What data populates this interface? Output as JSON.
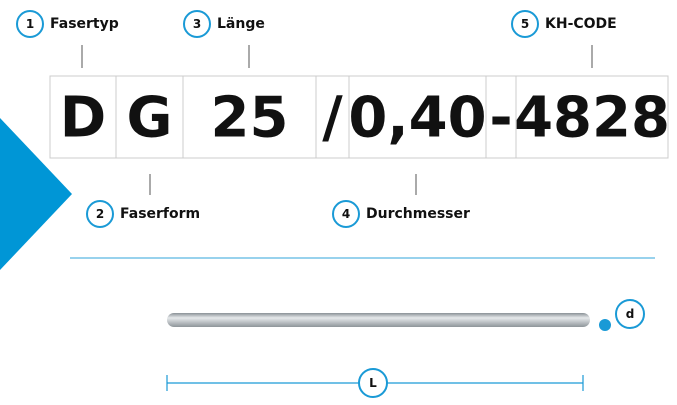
{
  "labels": [
    {
      "number": "1",
      "text": "Fasertyp"
    },
    {
      "number": "2",
      "text": "Faserform"
    },
    {
      "number": "3",
      "text": "Länge"
    },
    {
      "number": "4",
      "text": "Durchmesser"
    },
    {
      "number": "5",
      "text": "KH-CODE"
    }
  ],
  "code": [
    "D",
    "G",
    "25",
    "/",
    "0,40",
    "-",
    "4828"
  ],
  "dimensions": {
    "diameter": "d",
    "length": "L"
  }
}
